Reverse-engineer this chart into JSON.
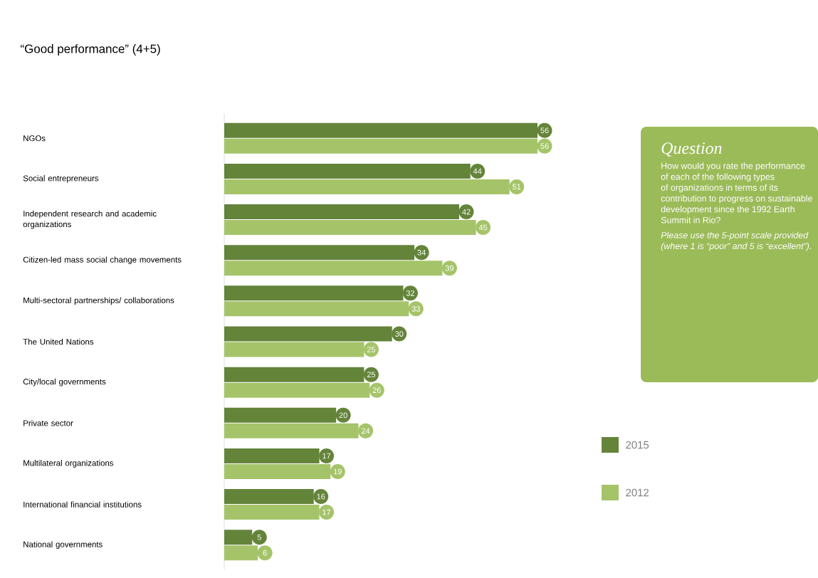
{
  "chart_data": {
    "type": "bar",
    "orientation": "horizontal",
    "title": "“Good performance” (4+5)",
    "categories": [
      "NGOs",
      "Social entrepreneurs",
      "Independent research and academic organizations",
      "Citizen-led mass social change movements",
      "Multi-sectoral partnerships/ collaborations",
      "The United Nations",
      "City/local governments",
      "Private sector",
      "Multilateral organizations",
      "International financial institutions",
      "National governments"
    ],
    "series": [
      {
        "name": "2015",
        "color": "#64843a",
        "values": [
          56,
          44,
          42,
          34,
          32,
          30,
          25,
          20,
          17,
          16,
          5
        ]
      },
      {
        "name": "2012",
        "color": "#a5c46a",
        "values": [
          56,
          51,
          45,
          39,
          33,
          25,
          26,
          24,
          19,
          17,
          6
        ]
      }
    ],
    "data_labels": true,
    "legend": "right",
    "annotations": [
      "Question",
      "How would you rate the performance of each of the following types of organizations in terms of its contribution to progress on sustainable development since the 1992 Earth Summit in Rio?",
      "Please use the 5-point scale provided (where 1 is “poor” and 5 is “excellent”)."
    ]
  }
}
